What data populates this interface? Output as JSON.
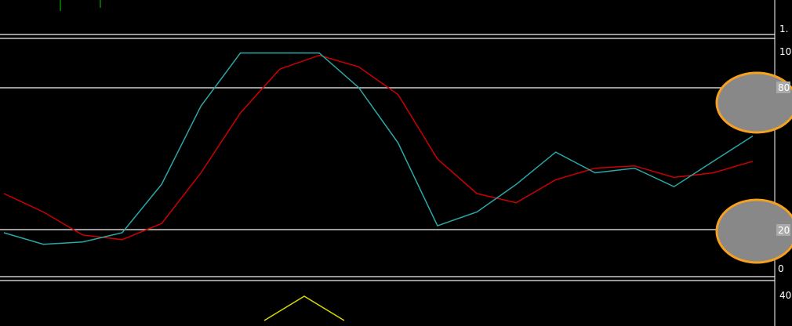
{
  "chart_data": [
    {
      "panel": "top",
      "type": "line",
      "axis_labels": [
        "1."
      ]
    },
    {
      "panel": "stochastic",
      "type": "line",
      "title": "",
      "ylim": [
        0,
        100
      ],
      "axis_labels": [
        "10",
        "0"
      ],
      "levels": [
        {
          "value": 80,
          "label": "80"
        },
        {
          "value": 20,
          "label": "20"
        }
      ],
      "x": [
        0,
        1,
        2,
        3,
        4,
        5,
        6,
        7,
        8,
        9,
        10,
        11,
        12,
        13,
        14,
        15,
        16,
        17,
        18,
        19
      ],
      "series": [
        {
          "color": "#cc0000",
          "values": [
            33,
            25,
            15,
            13,
            20,
            42,
            68,
            87,
            93,
            88,
            76,
            48,
            33,
            29,
            39,
            44,
            45,
            40,
            42,
            47
          ]
        },
        {
          "color": "#2aa8a8",
          "values": [
            16,
            11,
            12,
            16,
            37,
            71,
            94,
            94,
            94,
            79,
            55,
            19,
            25,
            37,
            51,
            42,
            44,
            36,
            47,
            58
          ]
        }
      ],
      "highlights": [
        {
          "value": 80,
          "color": "#888888",
          "outline": "#f5a020"
        },
        {
          "value": 20,
          "color": "#888888",
          "outline": "#f5a020"
        }
      ],
      "grid": false
    },
    {
      "panel": "bottom",
      "type": "line",
      "axis_labels": [
        "40"
      ],
      "series": [
        {
          "color": "#d8d800",
          "values": [
            25,
            50,
            25
          ]
        }
      ]
    }
  ]
}
